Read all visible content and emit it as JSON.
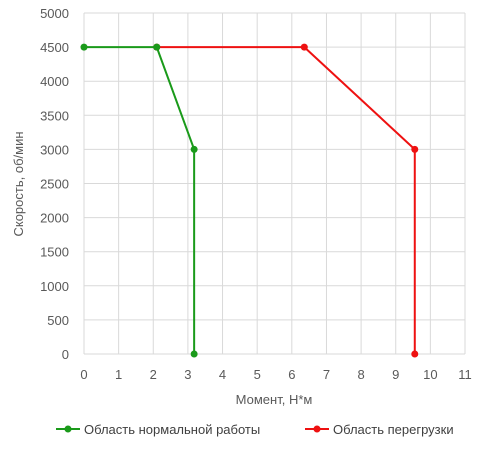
{
  "chart_data": {
    "type": "scatter",
    "title": "",
    "xlabel": "Момент, Н*м",
    "ylabel": "Скорость, об/мин",
    "xlim": [
      0,
      11
    ],
    "ylim": [
      0,
      5000
    ],
    "x_ticks": [
      0,
      1,
      2,
      3,
      4,
      5,
      6,
      7,
      8,
      9,
      10,
      11
    ],
    "y_ticks": [
      0,
      500,
      1000,
      1500,
      2000,
      2500,
      3000,
      3500,
      4000,
      4500,
      5000
    ],
    "grid": true,
    "legend_position": "bottom",
    "series": [
      {
        "name": "Область нормальной работы",
        "color": "#1a9a1a",
        "points": [
          {
            "x": 0,
            "y": 4500
          },
          {
            "x": 2.1,
            "y": 4500
          },
          {
            "x": 3.18,
            "y": 3000
          },
          {
            "x": 3.18,
            "y": 0
          }
        ]
      },
      {
        "name": "Область перегрузки",
        "color": "#ee1111",
        "points": [
          {
            "x": 2.1,
            "y": 4500
          },
          {
            "x": 6.36,
            "y": 4500
          },
          {
            "x": 9.55,
            "y": 3000
          },
          {
            "x": 9.55,
            "y": 0
          }
        ]
      }
    ]
  }
}
